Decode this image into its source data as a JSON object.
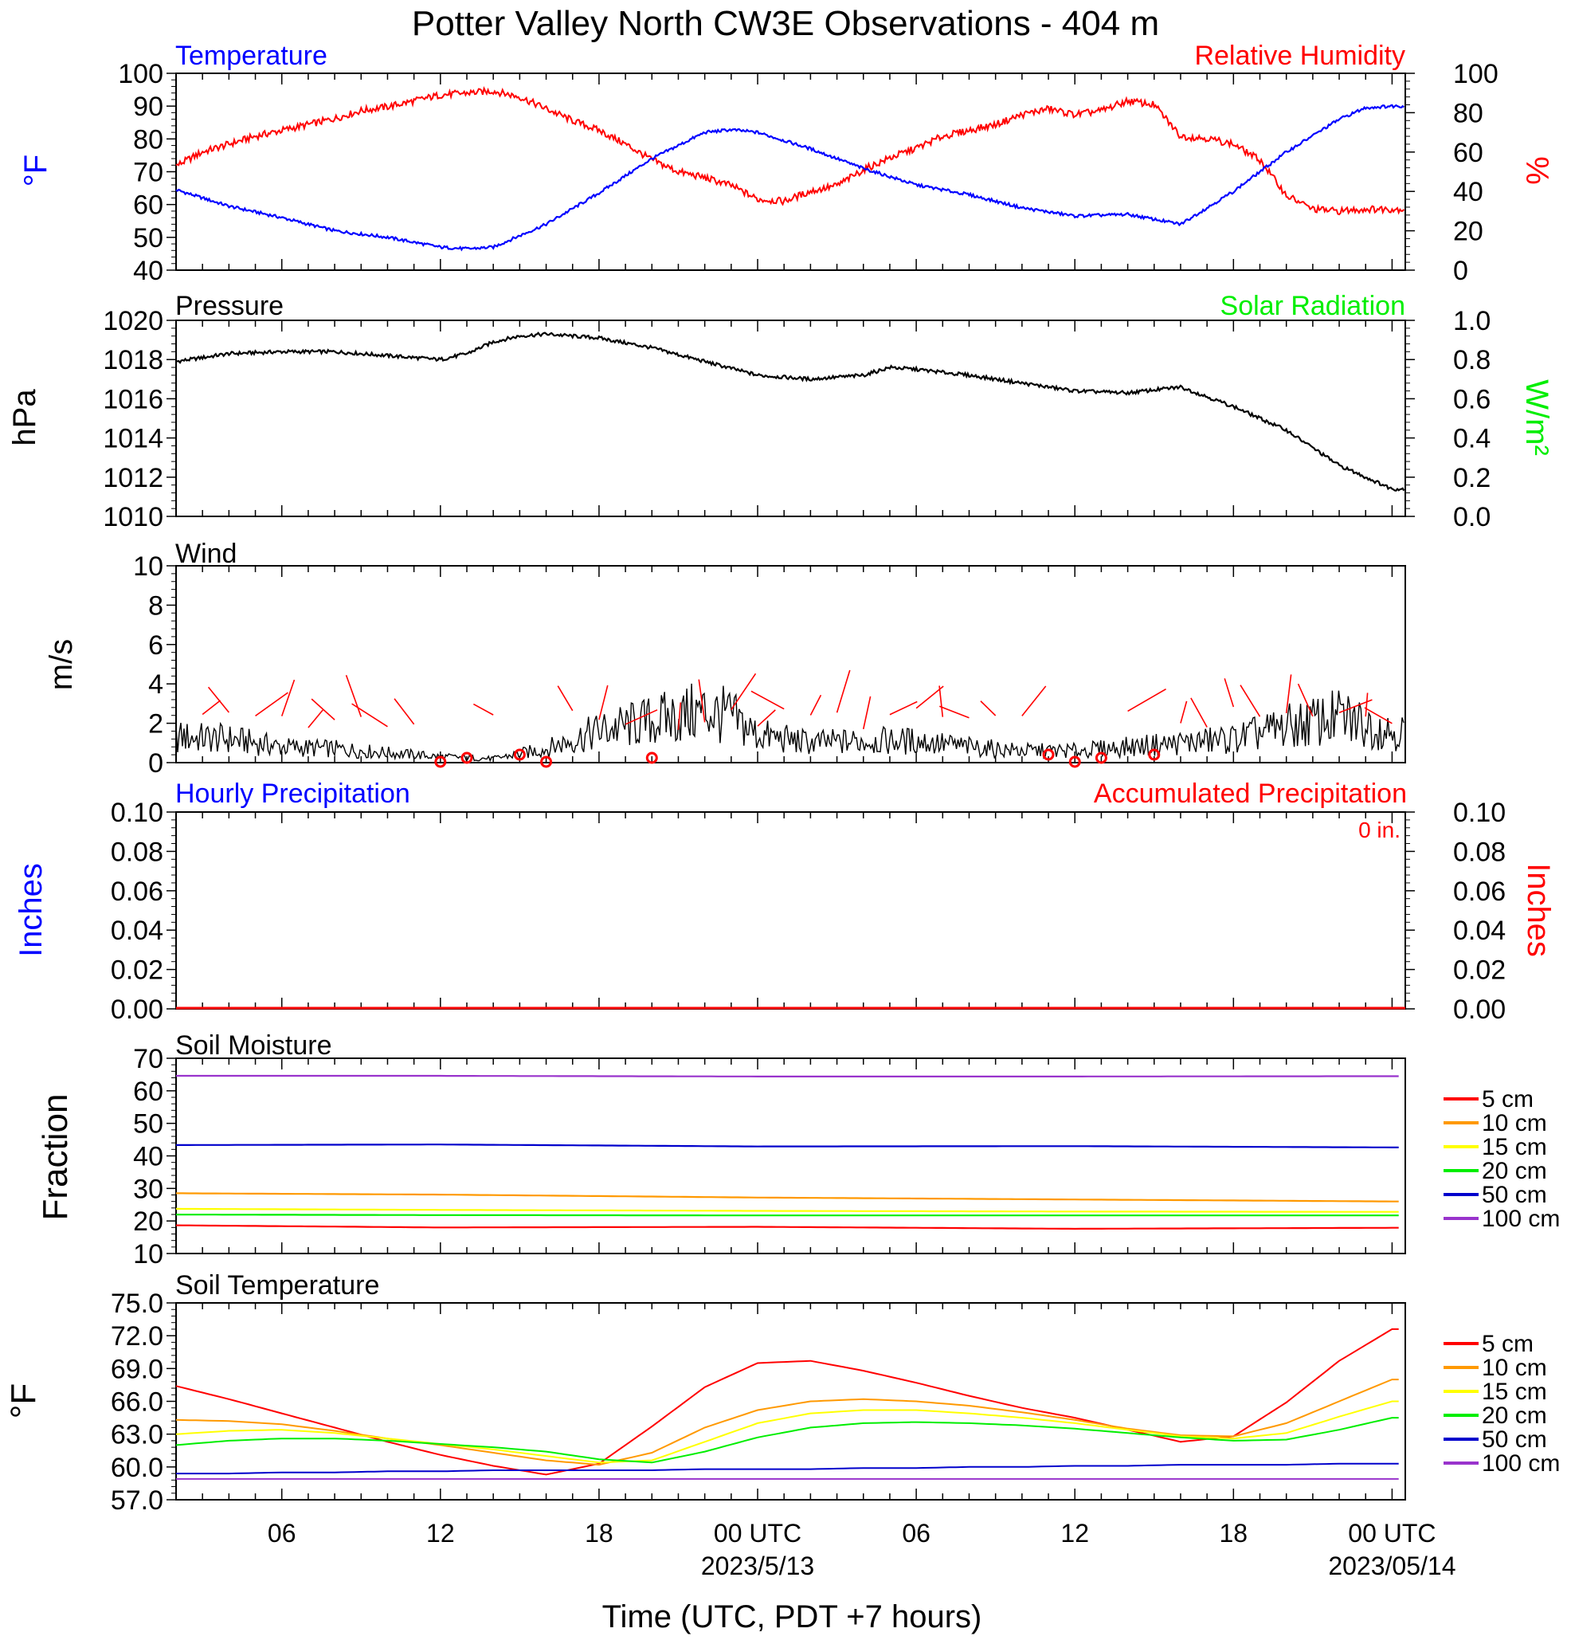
{
  "title": "Potter Valley North CW3E Observations - 404 m",
  "x_axis": {
    "label": "Time (UTC, PDT +7 hours)",
    "ticks": [
      {
        "h": 6,
        "label": "06"
      },
      {
        "h": 12,
        "label": "12"
      },
      {
        "h": 18,
        "label": "18"
      },
      {
        "h": 24,
        "label": "00 UTC"
      },
      {
        "h": 30,
        "label": "06"
      },
      {
        "h": 36,
        "label": "12"
      },
      {
        "h": 42,
        "label": "18"
      },
      {
        "h": 48,
        "label": "00 UTC"
      }
    ],
    "dates": [
      {
        "h": 24,
        "label": "2023/5/13"
      },
      {
        "h": 48,
        "label": "2023/05/14"
      }
    ]
  },
  "colors": {
    "blue": "#0000ff",
    "red": "#ff0000",
    "green": "#00ee00",
    "black": "#000000",
    "orange": "#ff9900",
    "yellow": "#ffff00",
    "soil_green": "#00ee00",
    "navy": "#0000cc",
    "purple": "#9933cc"
  },
  "panels": {
    "temperature": {
      "left_title": "Temperature",
      "right_title": "Relative Humidity",
      "left_unit": "°F",
      "right_unit": "%",
      "left_ticks": [
        "40",
        "50",
        "60",
        "70",
        "80",
        "90",
        "100"
      ],
      "right_ticks": [
        "0",
        "20",
        "40",
        "60",
        "80",
        "100"
      ]
    },
    "pressure": {
      "left_title": "Pressure",
      "right_title": "Solar Radiation",
      "left_unit": "hPa",
      "right_unit": "W/m²",
      "left_ticks": [
        "1010",
        "1012",
        "1014",
        "1016",
        "1018",
        "1020"
      ],
      "right_ticks": [
        "0.0",
        "0.2",
        "0.4",
        "0.6",
        "0.8",
        "1.0"
      ]
    },
    "wind": {
      "left_title": "Wind",
      "left_unit": "m/s",
      "left_ticks": [
        "0",
        "2",
        "4",
        "6",
        "8",
        "10"
      ]
    },
    "precip": {
      "left_title": "Hourly Precipitation",
      "right_title": "Accumulated Precipitation",
      "total_label": "0 in.",
      "left_unit": "Inches",
      "right_unit": "Inches",
      "left_ticks": [
        "0.00",
        "0.02",
        "0.04",
        "0.06",
        "0.08",
        "0.10"
      ],
      "right_ticks": [
        "0.00",
        "0.02",
        "0.04",
        "0.06",
        "0.08",
        "0.10"
      ]
    },
    "soil_moisture": {
      "left_title": "Soil Moisture",
      "left_unit": "Fraction",
      "left_ticks": [
        "10",
        "20",
        "30",
        "40",
        "50",
        "60",
        "70"
      ]
    },
    "soil_temperature": {
      "left_title": "Soil Temperature",
      "left_unit": "°F",
      "left_ticks": [
        "57.0",
        "60.0",
        "63.0",
        "66.0",
        "69.0",
        "72.0",
        "75.0"
      ]
    }
  },
  "legend_depths": [
    "5 cm",
    "10 cm",
    "15 cm",
    "20 cm",
    "50 cm",
    "100 cm"
  ],
  "chart_data": [
    {
      "type": "line",
      "title": "Temperature",
      "ylabel": "°F",
      "ylim": [
        40,
        100
      ],
      "x_hours": [
        0,
        2,
        4,
        6,
        8,
        10,
        12,
        13,
        14,
        16,
        18,
        20,
        22,
        23,
        24,
        26,
        28,
        30,
        32,
        34,
        36,
        38,
        40,
        42,
        44,
        46,
        47,
        48
      ],
      "series": [
        {
          "name": "Temperature",
          "y": [
            68.5,
            64.5,
            59.5,
            56,
            52,
            50,
            47,
            46.5,
            47,
            54,
            63.5,
            74,
            82,
            82.8,
            82,
            77,
            71,
            66,
            63,
            59,
            56.5,
            57,
            54,
            64,
            76,
            86,
            89.5,
            90
          ]
        }
      ]
    },
    {
      "type": "line",
      "title": "Relative Humidity",
      "ylabel": "%",
      "ylim": [
        0,
        100
      ],
      "x_hours": [
        0,
        1,
        2,
        3,
        4,
        5,
        6,
        7,
        8,
        9,
        10,
        11,
        12,
        13,
        14,
        15,
        16,
        17,
        18,
        19,
        20,
        21,
        22,
        23,
        24,
        25,
        26,
        27,
        28,
        29,
        30,
        31,
        32,
        33,
        34,
        35,
        36,
        37,
        38,
        39,
        40,
        41,
        42,
        43,
        44,
        45,
        46,
        47,
        48
      ],
      "series": [
        {
          "name": "Relative Humidity",
          "y": [
            43,
            46,
            53,
            60,
            64,
            68,
            71,
            74,
            77,
            81,
            83,
            86,
            89,
            90,
            91,
            88,
            82,
            76,
            71,
            64,
            56,
            50,
            47,
            43,
            36,
            35,
            40,
            43,
            51,
            57,
            62,
            68,
            71,
            74,
            79,
            82,
            79,
            81,
            86,
            84,
            68,
            67,
            64,
            56,
            38,
            31,
            30,
            31,
            31
          ]
        }
      ]
    },
    {
      "type": "line",
      "title": "Pressure",
      "ylabel": "hPa",
      "ylim": [
        1010,
        1020
      ],
      "x_hours": [
        0,
        2,
        4,
        6,
        8,
        10,
        12,
        13,
        14,
        15,
        16,
        18,
        20,
        22,
        24,
        26,
        28,
        29,
        30,
        32,
        34,
        36,
        38,
        40,
        42,
        44,
        46,
        48
      ],
      "series": [
        {
          "name": "Pressure",
          "y": [
            1017.7,
            1017.9,
            1018.3,
            1018.4,
            1018.4,
            1018.2,
            1018.0,
            1018.3,
            1018.9,
            1019.2,
            1019.3,
            1019.1,
            1018.6,
            1017.9,
            1017.2,
            1017.0,
            1017.2,
            1017.6,
            1017.5,
            1017.2,
            1016.8,
            1016.4,
            1016.3,
            1016.6,
            1015.6,
            1014.4,
            1012.6,
            1011.4
          ]
        }
      ]
    },
    {
      "type": "line",
      "title": "Solar Radiation",
      "ylabel": "W/m²",
      "ylim": [
        0.0,
        1.0
      ],
      "x_hours": [],
      "series": [
        {
          "name": "Solar Radiation",
          "y": []
        }
      ]
    },
    {
      "type": "line",
      "title": "Wind",
      "ylabel": "m/s",
      "ylim": [
        0,
        10
      ],
      "x_hours": [
        0,
        2,
        4,
        6,
        8,
        10,
        12,
        14,
        16,
        18,
        20,
        22,
        23,
        24,
        26,
        28,
        30,
        32,
        34,
        36,
        38,
        40,
        42,
        44,
        46,
        48
      ],
      "series": [
        {
          "name": "Wind",
          "y": [
            2.2,
            1.3,
            1.2,
            0.8,
            0.7,
            0.5,
            0.3,
            0.2,
            0.7,
            1.6,
            2.1,
            2.6,
            2.3,
            1.4,
            1.0,
            1.1,
            1.1,
            0.8,
            0.6,
            0.6,
            0.8,
            1.0,
            1.2,
            1.8,
            2.3,
            1.6
          ]
        }
      ]
    },
    {
      "type": "line",
      "title": "Hourly Precipitation",
      "ylabel": "Inches",
      "ylim": [
        0.0,
        0.1
      ],
      "x_hours": [
        0,
        48
      ],
      "series": [
        {
          "name": "Hourly Precipitation",
          "y": [
            0,
            0
          ]
        },
        {
          "name": "Accumulated Precipitation",
          "y": [
            0,
            0
          ]
        }
      ]
    },
    {
      "type": "line",
      "title": "Soil Moisture",
      "ylabel": "Fraction",
      "ylim": [
        10,
        70
      ],
      "x_hours": [
        0,
        12,
        24,
        36,
        48
      ],
      "series": [
        {
          "name": "5 cm",
          "y": [
            18.8,
            18.0,
            18.2,
            17.6,
            17.9
          ]
        },
        {
          "name": "10 cm",
          "y": [
            28.6,
            28.1,
            27.2,
            26.6,
            26.0
          ]
        },
        {
          "name": "15 cm",
          "y": [
            23.8,
            23.4,
            23.1,
            22.9,
            22.8
          ]
        },
        {
          "name": "20 cm",
          "y": [
            22.0,
            21.8,
            21.7,
            21.7,
            21.7
          ]
        },
        {
          "name": "50 cm",
          "y": [
            43.3,
            43.5,
            42.9,
            43.0,
            42.6
          ]
        },
        {
          "name": "100 cm",
          "y": [
            64.6,
            64.6,
            64.4,
            64.4,
            64.5
          ]
        }
      ]
    },
    {
      "type": "line",
      "title": "Soil Temperature",
      "ylabel": "°F",
      "ylim": [
        57.0,
        75.0
      ],
      "x_hours": [
        0,
        2,
        4,
        6,
        8,
        10,
        12,
        14,
        16,
        18,
        20,
        22,
        24,
        26,
        28,
        30,
        32,
        34,
        36,
        38,
        40,
        42,
        44,
        46,
        48
      ],
      "series": [
        {
          "name": "5 cm",
          "y": [
            67.3,
            67.4,
            66.2,
            64.9,
            63.6,
            62.3,
            61.1,
            60.1,
            59.3,
            60.3,
            63.7,
            67.3,
            69.5,
            69.7,
            68.8,
            67.7,
            66.5,
            65.4,
            64.5,
            63.4,
            62.3,
            62.8,
            65.9,
            69.7,
            72.6
          ]
        },
        {
          "name": "10 cm",
          "y": [
            63.6,
            64.3,
            64.2,
            63.9,
            63.3,
            62.6,
            62.0,
            61.3,
            60.6,
            60.2,
            61.3,
            63.6,
            65.2,
            66.0,
            66.2,
            66.0,
            65.6,
            65.0,
            64.3,
            63.5,
            62.9,
            62.8,
            64.0,
            66.0,
            68.0
          ]
        },
        {
          "name": "15 cm",
          "y": [
            62.2,
            63.0,
            63.3,
            63.4,
            63.1,
            62.6,
            62.1,
            61.6,
            61.0,
            60.4,
            60.6,
            62.3,
            64.0,
            64.9,
            65.2,
            65.2,
            64.9,
            64.5,
            64.0,
            63.4,
            62.8,
            62.6,
            63.1,
            64.6,
            66.0
          ]
        },
        {
          "name": "20 cm",
          "y": [
            61.2,
            62.0,
            62.4,
            62.6,
            62.6,
            62.4,
            62.1,
            61.8,
            61.4,
            60.7,
            60.4,
            61.4,
            62.7,
            63.6,
            64.0,
            64.1,
            64.0,
            63.8,
            63.5,
            63.1,
            62.7,
            62.4,
            62.5,
            63.4,
            64.5
          ]
        },
        {
          "name": "50 cm",
          "y": [
            59.4,
            59.4,
            59.4,
            59.5,
            59.5,
            59.6,
            59.6,
            59.7,
            59.7,
            59.7,
            59.7,
            59.8,
            59.8,
            59.8,
            59.9,
            59.9,
            60.0,
            60.0,
            60.1,
            60.1,
            60.2,
            60.2,
            60.2,
            60.3,
            60.3
          ]
        },
        {
          "name": "100 cm",
          "y": [
            58.9,
            58.9,
            58.9,
            58.9,
            58.9,
            58.9,
            58.9,
            58.9,
            58.9,
            58.9,
            58.9,
            58.9,
            58.9,
            58.9,
            58.9,
            58.9,
            58.9,
            58.9,
            58.9,
            58.9,
            58.9,
            58.9,
            58.9,
            58.9,
            58.9
          ]
        }
      ]
    }
  ]
}
